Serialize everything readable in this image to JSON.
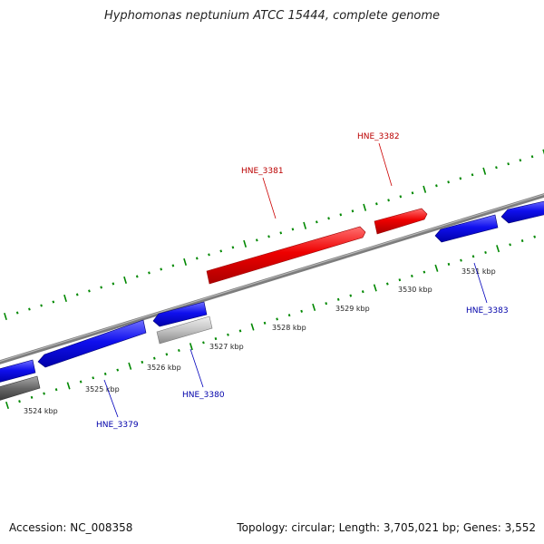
{
  "title": "Hyphomonas neptunium ATCC 15444, complete genome",
  "accession": "Accession: NC_008358",
  "topology": "Topology: circular; Length: 3,705,021 bp; Genes: 3,552",
  "colors": {
    "forward_gene": "#ee0000",
    "reverse_gene": "#1010ee",
    "gray_gene": "#bbbbbb",
    "dark_gene": "#666666",
    "backbone": "#888888",
    "forward_tick": "#008800",
    "reverse_tick": "#008800",
    "forward_label": "#bb0000",
    "reverse_label": "#0000aa"
  },
  "scale_labels": [
    "3524 kbp",
    "3525 kbp",
    "3526 kbp",
    "3527 kbp",
    "3528 kbp",
    "3529 kbp",
    "3530 kbp",
    "3531 kbp"
  ],
  "gene_labels": {
    "HNE_3379": "HNE_3379",
    "HNE_3380": "HNE_3380",
    "HNE_3381": "HNE_3381",
    "HNE_3382": "HNE_3382",
    "HNE_3383": "HNE_3383"
  }
}
